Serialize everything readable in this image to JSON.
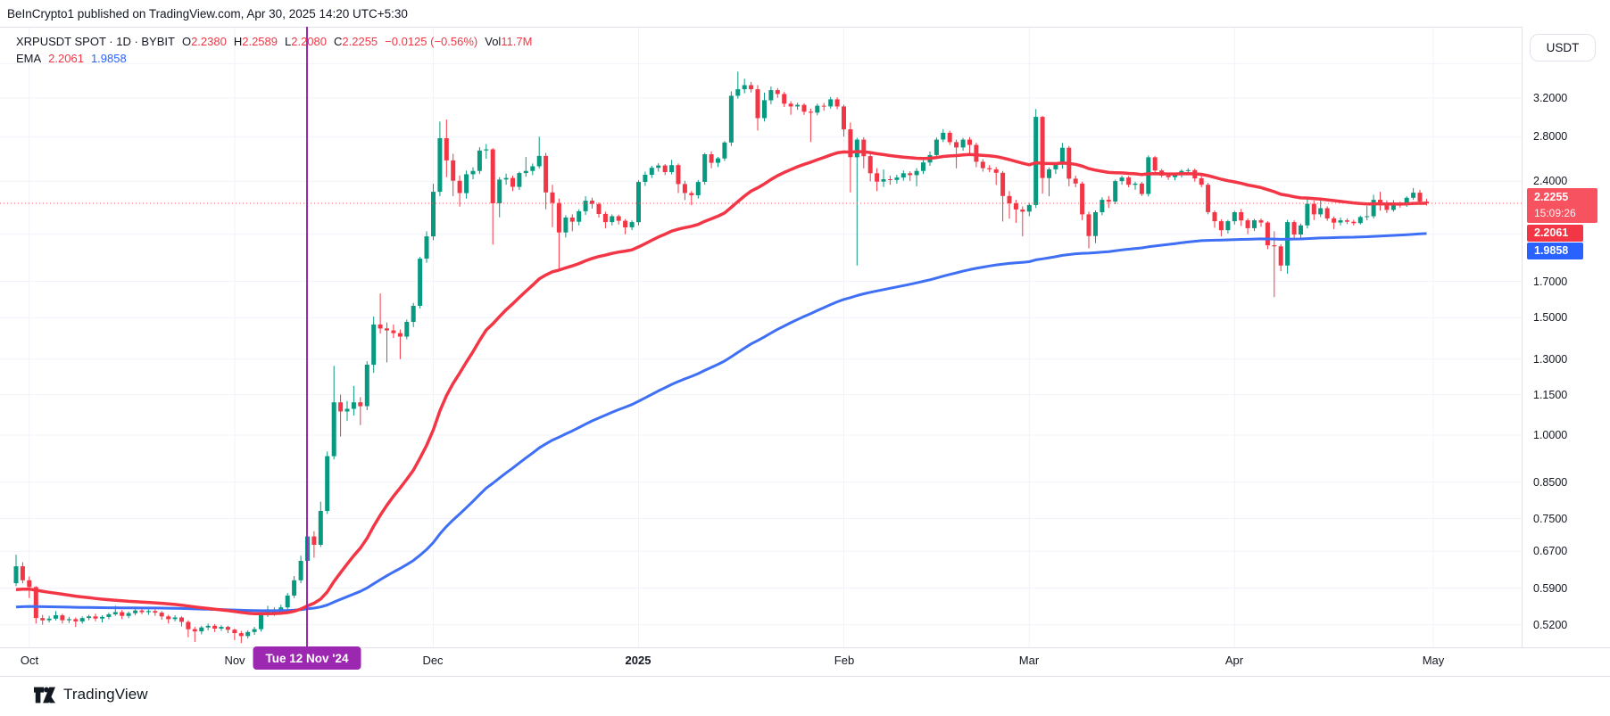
{
  "header": {
    "text": "BeInCrypto1 published on TradingView.com, Apr 30, 2025 14:20 UTC+5:30"
  },
  "legend": {
    "symbol": "XRPUSDT SPOT · 1D · BYBIT",
    "o_label": "O",
    "o": "2.2380",
    "h_label": "H",
    "h": "2.2589",
    "l_label": "L",
    "l": "2.2080",
    "c_label": "C",
    "c": "2.2255",
    "change": "−0.0125 (−0.56%)",
    "vol_label": "Vol",
    "vol": "11.7M",
    "ema_label": "EMA",
    "ema_fast_value": "2.2061",
    "ema_slow_value": "1.9858"
  },
  "price_axis": {
    "currency": "USDT",
    "last_price": "2.2255",
    "countdown": "15:09:26",
    "ema_fast_badge": "2.2061",
    "ema_slow_badge": "1.9858",
    "ticks": [
      {
        "label": "",
        "value": 3.6,
        "hidden": true
      },
      {
        "label": "3.2000",
        "value": 3.2
      },
      {
        "label": "2.8000",
        "value": 2.8
      },
      {
        "label": "2.4000",
        "value": 2.4
      },
      {
        "label": "",
        "value": 2.0,
        "hidden": true
      },
      {
        "label": "1.7000",
        "value": 1.7
      },
      {
        "label": "1.5000",
        "value": 1.5
      },
      {
        "label": "1.3000",
        "value": 1.3
      },
      {
        "label": "1.1500",
        "value": 1.15
      },
      {
        "label": "1.0000",
        "value": 1.0
      },
      {
        "label": "0.8500",
        "value": 0.85
      },
      {
        "label": "0.7500",
        "value": 0.75
      },
      {
        "label": "0.6700",
        "value": 0.67
      },
      {
        "label": "0.5900",
        "value": 0.59
      },
      {
        "label": "0.5200",
        "value": 0.52
      }
    ]
  },
  "time_axis": {
    "months": [
      {
        "label": "Oct",
        "day": 2
      },
      {
        "label": "Nov",
        "day": 33
      },
      {
        "label": "Dec",
        "day": 63
      },
      {
        "label": "2025",
        "day": 94,
        "bold": true
      },
      {
        "label": "Feb",
        "day": 125
      },
      {
        "label": "Mar",
        "day": 153
      },
      {
        "label": "Apr",
        "day": 184
      },
      {
        "label": "May",
        "day": 214
      }
    ],
    "marker_label": "Tue 12 Nov '24",
    "marker_day": 44
  },
  "footer": {
    "logo_text": "TradingView"
  },
  "colors": {
    "up": "#089981",
    "down": "#F23645",
    "ema_fast": "#F23645",
    "ema_slow": "#3E6FF4",
    "last_badge": "#F7525F",
    "ema_fast_badge_bg": "#F23645",
    "ema_slow_badge_bg": "#2962FF",
    "marker": "#9C27B0",
    "grid": "#F0F3FA",
    "border": "#E0E3EB",
    "text": "#131722"
  },
  "chart_data": {
    "type": "candlestick",
    "title": "XRPUSDT SPOT · 1D · BYBIT",
    "symbol": "XRPUSDT",
    "exchange": "BYBIT",
    "interval": "1D",
    "scale": "log",
    "start_date": "2024-09-29",
    "last_close": 2.2255,
    "indicators": [
      {
        "name": "EMA",
        "last_value": 2.2061,
        "color_key": "ema_fast"
      },
      {
        "name": "EMA",
        "last_value": 1.9858,
        "color_key": "ema_slow"
      }
    ],
    "ohlc": [
      [
        0.6,
        0.662,
        0.594,
        0.636
      ],
      [
        0.636,
        0.645,
        0.6,
        0.606
      ],
      [
        0.606,
        0.614,
        0.57,
        0.592
      ],
      [
        0.592,
        0.594,
        0.522,
        0.532
      ],
      [
        0.532,
        0.538,
        0.52,
        0.528
      ],
      [
        0.528,
        0.536,
        0.524,
        0.531
      ],
      [
        0.531,
        0.545,
        0.528,
        0.537
      ],
      [
        0.537,
        0.54,
        0.522,
        0.528
      ],
      [
        0.528,
        0.534,
        0.523,
        0.53
      ],
      [
        0.53,
        0.533,
        0.516,
        0.526
      ],
      [
        0.526,
        0.535,
        0.522,
        0.532
      ],
      [
        0.532,
        0.538,
        0.528,
        0.535
      ],
      [
        0.535,
        0.54,
        0.526,
        0.531
      ],
      [
        0.531,
        0.537,
        0.524,
        0.534
      ],
      [
        0.534,
        0.542,
        0.53,
        0.539
      ],
      [
        0.539,
        0.555,
        0.536,
        0.543
      ],
      [
        0.543,
        0.547,
        0.53,
        0.536
      ],
      [
        0.536,
        0.544,
        0.532,
        0.541
      ],
      [
        0.541,
        0.549,
        0.537,
        0.546
      ],
      [
        0.546,
        0.552,
        0.539,
        0.543
      ],
      [
        0.543,
        0.548,
        0.538,
        0.545
      ],
      [
        0.545,
        0.548,
        0.536,
        0.542
      ],
      [
        0.542,
        0.545,
        0.529,
        0.535
      ],
      [
        0.535,
        0.538,
        0.522,
        0.53
      ],
      [
        0.53,
        0.537,
        0.526,
        0.533
      ],
      [
        0.533,
        0.535,
        0.517,
        0.525
      ],
      [
        0.525,
        0.528,
        0.498,
        0.512
      ],
      [
        0.512,
        0.516,
        0.49,
        0.508
      ],
      [
        0.508,
        0.518,
        0.503,
        0.515
      ],
      [
        0.515,
        0.522,
        0.51,
        0.518
      ],
      [
        0.518,
        0.521,
        0.507,
        0.513
      ],
      [
        0.513,
        0.519,
        0.509,
        0.516
      ],
      [
        0.516,
        0.518,
        0.505,
        0.511
      ],
      [
        0.511,
        0.513,
        0.493,
        0.505
      ],
      [
        0.505,
        0.509,
        0.488,
        0.5
      ],
      [
        0.5,
        0.51,
        0.496,
        0.507
      ],
      [
        0.507,
        0.516,
        0.502,
        0.512
      ],
      [
        0.512,
        0.543,
        0.508,
        0.54
      ],
      [
        0.54,
        0.555,
        0.534,
        0.548
      ],
      [
        0.548,
        0.552,
        0.536,
        0.543
      ],
      [
        0.543,
        0.557,
        0.539,
        0.552
      ],
      [
        0.552,
        0.58,
        0.548,
        0.575
      ],
      [
        0.575,
        0.615,
        0.57,
        0.606
      ],
      [
        0.606,
        0.66,
        0.6,
        0.648
      ],
      [
        0.648,
        0.733,
        0.64,
        0.705
      ],
      [
        0.705,
        0.718,
        0.655,
        0.685
      ],
      [
        0.685,
        0.795,
        0.68,
        0.77
      ],
      [
        0.77,
        0.945,
        0.762,
        0.93
      ],
      [
        0.93,
        1.27,
        0.92,
        1.12
      ],
      [
        1.12,
        1.15,
        0.995,
        1.085
      ],
      [
        1.085,
        1.125,
        1.05,
        1.095
      ],
      [
        1.095,
        1.185,
        1.07,
        1.12
      ],
      [
        1.12,
        1.14,
        1.035,
        1.105
      ],
      [
        1.105,
        1.29,
        1.09,
        1.275
      ],
      [
        1.275,
        1.505,
        1.24,
        1.465
      ],
      [
        1.465,
        1.63,
        1.42,
        1.445
      ],
      [
        1.445,
        1.475,
        1.285,
        1.435
      ],
      [
        1.435,
        1.465,
        1.398,
        1.422
      ],
      [
        1.422,
        1.44,
        1.3,
        1.405
      ],
      [
        1.405,
        1.49,
        1.392,
        1.478
      ],
      [
        1.478,
        1.578,
        1.452,
        1.562
      ],
      [
        1.562,
        1.85,
        1.548,
        1.838
      ],
      [
        1.838,
        2.02,
        1.812,
        1.985
      ],
      [
        1.985,
        2.38,
        1.96,
        2.315
      ],
      [
        2.315,
        2.95,
        2.28,
        2.785
      ],
      [
        2.785,
        2.97,
        2.435,
        2.58
      ],
      [
        2.58,
        2.64,
        2.28,
        2.405
      ],
      [
        2.405,
        2.45,
        2.2,
        2.305
      ],
      [
        2.305,
        2.492,
        2.262,
        2.46
      ],
      [
        2.46,
        2.52,
        2.418,
        2.488
      ],
      [
        2.488,
        2.7,
        2.462,
        2.67
      ],
      [
        2.67,
        2.73,
        2.595,
        2.68
      ],
      [
        2.68,
        2.692,
        1.93,
        2.225
      ],
      [
        2.225,
        2.435,
        2.12,
        2.415
      ],
      [
        2.415,
        2.465,
        2.372,
        2.428
      ],
      [
        2.428,
        2.448,
        2.322,
        2.355
      ],
      [
        2.355,
        2.482,
        2.33,
        2.47
      ],
      [
        2.47,
        2.61,
        2.438,
        2.488
      ],
      [
        2.488,
        2.552,
        2.452,
        2.528
      ],
      [
        2.528,
        2.8,
        2.51,
        2.62
      ],
      [
        2.62,
        2.648,
        2.18,
        2.31
      ],
      [
        2.31,
        2.372,
        2.05,
        2.228
      ],
      [
        2.228,
        2.262,
        1.76,
        2.012
      ],
      [
        2.012,
        2.135,
        1.978,
        2.118
      ],
      [
        2.118,
        2.142,
        2.02,
        2.088
      ],
      [
        2.088,
        2.18,
        2.062,
        2.165
      ],
      [
        2.165,
        2.28,
        2.138,
        2.245
      ],
      [
        2.245,
        2.268,
        2.185,
        2.22
      ],
      [
        2.22,
        2.232,
        2.118,
        2.145
      ],
      [
        2.145,
        2.162,
        2.04,
        2.085
      ],
      [
        2.085,
        2.142,
        2.062,
        2.128
      ],
      [
        2.128,
        2.14,
        2.068,
        2.095
      ],
      [
        2.095,
        2.108,
        2.0,
        2.048
      ],
      [
        2.048,
        2.098,
        2.028,
        2.085
      ],
      [
        2.085,
        2.41,
        2.062,
        2.395
      ],
      [
        2.395,
        2.482,
        2.362,
        2.455
      ],
      [
        2.455,
        2.532,
        2.428,
        2.515
      ],
      [
        2.515,
        2.555,
        2.482,
        2.535
      ],
      [
        2.535,
        2.548,
        2.452,
        2.478
      ],
      [
        2.478,
        2.585,
        2.458,
        2.538
      ],
      [
        2.538,
        2.552,
        2.305,
        2.378
      ],
      [
        2.378,
        2.405,
        2.25,
        2.305
      ],
      [
        2.305,
        2.322,
        2.21,
        2.288
      ],
      [
        2.288,
        2.412,
        2.262,
        2.395
      ],
      [
        2.395,
        2.648,
        2.372,
        2.635
      ],
      [
        2.635,
        2.662,
        2.512,
        2.558
      ],
      [
        2.558,
        2.612,
        2.522,
        2.598
      ],
      [
        2.598,
        2.758,
        2.575,
        2.745
      ],
      [
        2.745,
        3.275,
        2.712,
        3.225
      ],
      [
        3.225,
        3.505,
        3.192,
        3.298
      ],
      [
        3.298,
        3.42,
        3.252,
        3.345
      ],
      [
        3.345,
        3.382,
        3.262,
        3.298
      ],
      [
        3.298,
        3.345,
        2.86,
        2.985
      ],
      [
        2.985,
        3.26,
        2.95,
        3.175
      ],
      [
        3.175,
        3.33,
        3.132,
        3.288
      ],
      [
        3.288,
        3.312,
        3.202,
        3.245
      ],
      [
        3.245,
        3.268,
        3.102,
        3.138
      ],
      [
        3.138,
        3.165,
        3.02,
        3.108
      ],
      [
        3.108,
        3.148,
        3.072,
        3.125
      ],
      [
        3.125,
        3.142,
        3.018,
        3.052
      ],
      [
        3.052,
        3.085,
        2.75,
        3.042
      ],
      [
        3.042,
        3.138,
        3.015,
        3.115
      ],
      [
        3.115,
        3.145,
        3.062,
        3.108
      ],
      [
        3.108,
        3.212,
        3.085,
        3.185
      ],
      [
        3.185,
        3.208,
        3.078,
        3.108
      ],
      [
        3.108,
        3.125,
        2.8,
        2.872
      ],
      [
        2.872,
        2.94,
        2.31,
        2.608
      ],
      [
        2.608,
        2.79,
        1.795,
        2.772
      ],
      [
        2.772,
        2.795,
        2.51,
        2.618
      ],
      [
        2.618,
        2.64,
        2.4,
        2.468
      ],
      [
        2.468,
        2.512,
        2.32,
        2.398
      ],
      [
        2.398,
        2.5,
        2.355,
        2.418
      ],
      [
        2.418,
        2.448,
        2.372,
        2.412
      ],
      [
        2.412,
        2.455,
        2.382,
        2.432
      ],
      [
        2.432,
        2.492,
        2.405,
        2.468
      ],
      [
        2.468,
        2.485,
        2.402,
        2.452
      ],
      [
        2.452,
        2.512,
        2.36,
        2.488
      ],
      [
        2.488,
        2.582,
        2.462,
        2.562
      ],
      [
        2.562,
        2.66,
        2.532,
        2.628
      ],
      [
        2.628,
        2.792,
        2.605,
        2.772
      ],
      [
        2.772,
        2.875,
        2.748,
        2.838
      ],
      [
        2.838,
        2.858,
        2.722,
        2.748
      ],
      [
        2.748,
        2.772,
        2.51,
        2.698
      ],
      [
        2.698,
        2.788,
        2.668,
        2.772
      ],
      [
        2.772,
        2.795,
        2.62,
        2.722
      ],
      [
        2.722,
        2.742,
        2.52,
        2.568
      ],
      [
        2.568,
        2.592,
        2.482,
        2.512
      ],
      [
        2.512,
        2.538,
        2.478,
        2.502
      ],
      [
        2.502,
        2.522,
        2.37,
        2.472
      ],
      [
        2.472,
        2.488,
        2.09,
        2.282
      ],
      [
        2.282,
        2.322,
        2.11,
        2.225
      ],
      [
        2.225,
        2.252,
        2.08,
        2.178
      ],
      [
        2.178,
        2.202,
        1.985,
        2.162
      ],
      [
        2.162,
        2.228,
        2.128,
        2.212
      ],
      [
        2.212,
        3.08,
        2.19,
        2.998
      ],
      [
        2.998,
        3.01,
        2.3,
        2.428
      ],
      [
        2.428,
        2.518,
        2.28,
        2.502
      ],
      [
        2.502,
        2.562,
        2.462,
        2.542
      ],
      [
        2.542,
        2.74,
        2.508,
        2.695
      ],
      [
        2.695,
        2.712,
        2.36,
        2.422
      ],
      [
        2.422,
        2.448,
        2.352,
        2.382
      ],
      [
        2.382,
        2.398,
        2.1,
        2.142
      ],
      [
        2.142,
        2.162,
        1.905,
        1.988
      ],
      [
        1.988,
        2.172,
        1.94,
        2.158
      ],
      [
        2.158,
        2.272,
        2.135,
        2.252
      ],
      [
        2.252,
        2.282,
        2.19,
        2.238
      ],
      [
        2.238,
        2.415,
        2.218,
        2.402
      ],
      [
        2.402,
        2.448,
        2.372,
        2.432
      ],
      [
        2.432,
        2.445,
        2.352,
        2.372
      ],
      [
        2.372,
        2.398,
        2.332,
        2.382
      ],
      [
        2.382,
        2.395,
        2.282,
        2.298
      ],
      [
        2.298,
        2.625,
        2.278,
        2.608
      ],
      [
        2.608,
        2.618,
        2.458,
        2.492
      ],
      [
        2.492,
        2.505,
        2.432,
        2.448
      ],
      [
        2.448,
        2.462,
        2.412,
        2.435
      ],
      [
        2.435,
        2.47,
        2.408,
        2.458
      ],
      [
        2.458,
        2.502,
        2.432,
        2.488
      ],
      [
        2.488,
        2.512,
        2.462,
        2.495
      ],
      [
        2.495,
        2.508,
        2.398,
        2.425
      ],
      [
        2.425,
        2.448,
        2.352,
        2.372
      ],
      [
        2.372,
        2.388,
        2.142,
        2.158
      ],
      [
        2.158,
        2.172,
        2.045,
        2.092
      ],
      [
        2.092,
        2.105,
        1.985,
        2.028
      ],
      [
        2.028,
        2.102,
        2.005,
        2.092
      ],
      [
        2.092,
        2.168,
        2.068,
        2.158
      ],
      [
        2.158,
        2.182,
        2.058,
        2.098
      ],
      [
        2.098,
        2.112,
        2.0,
        2.042
      ],
      [
        2.042,
        2.108,
        2.022,
        2.098
      ],
      [
        2.098,
        2.112,
        2.052,
        2.082
      ],
      [
        2.082,
        2.092,
        1.9,
        1.925
      ],
      [
        1.925,
        2.02,
        1.61,
        1.918
      ],
      [
        1.918,
        1.932,
        1.76,
        1.795
      ],
      [
        1.795,
        2.102,
        1.745,
        2.085
      ],
      [
        2.085,
        2.098,
        1.96,
        1.998
      ],
      [
        1.998,
        2.075,
        1.975,
        2.062
      ],
      [
        2.062,
        2.26,
        2.04,
        2.222
      ],
      [
        2.222,
        2.245,
        2.1,
        2.142
      ],
      [
        2.142,
        2.252,
        2.122,
        2.188
      ],
      [
        2.188,
        2.202,
        2.095,
        2.112
      ],
      [
        2.112,
        2.125,
        2.035,
        2.082
      ],
      [
        2.082,
        2.118,
        2.062,
        2.098
      ],
      [
        2.098,
        2.112,
        2.072,
        2.088
      ],
      [
        2.088,
        2.102,
        2.062,
        2.078
      ],
      [
        2.078,
        2.132,
        2.068,
        2.122
      ],
      [
        2.122,
        2.205,
        2.098,
        2.128
      ],
      [
        2.128,
        2.292,
        2.112,
        2.252
      ],
      [
        2.252,
        2.315,
        2.17,
        2.228
      ],
      [
        2.228,
        2.248,
        2.152,
        2.175
      ],
      [
        2.175,
        2.25,
        2.162,
        2.222
      ],
      [
        2.222,
        2.238,
        2.192,
        2.212
      ],
      [
        2.212,
        2.28,
        2.198,
        2.268
      ],
      [
        2.268,
        2.345,
        2.252,
        2.308
      ],
      [
        2.308,
        2.33,
        2.22,
        2.238
      ],
      [
        2.238,
        2.2589,
        2.208,
        2.2255
      ]
    ]
  }
}
